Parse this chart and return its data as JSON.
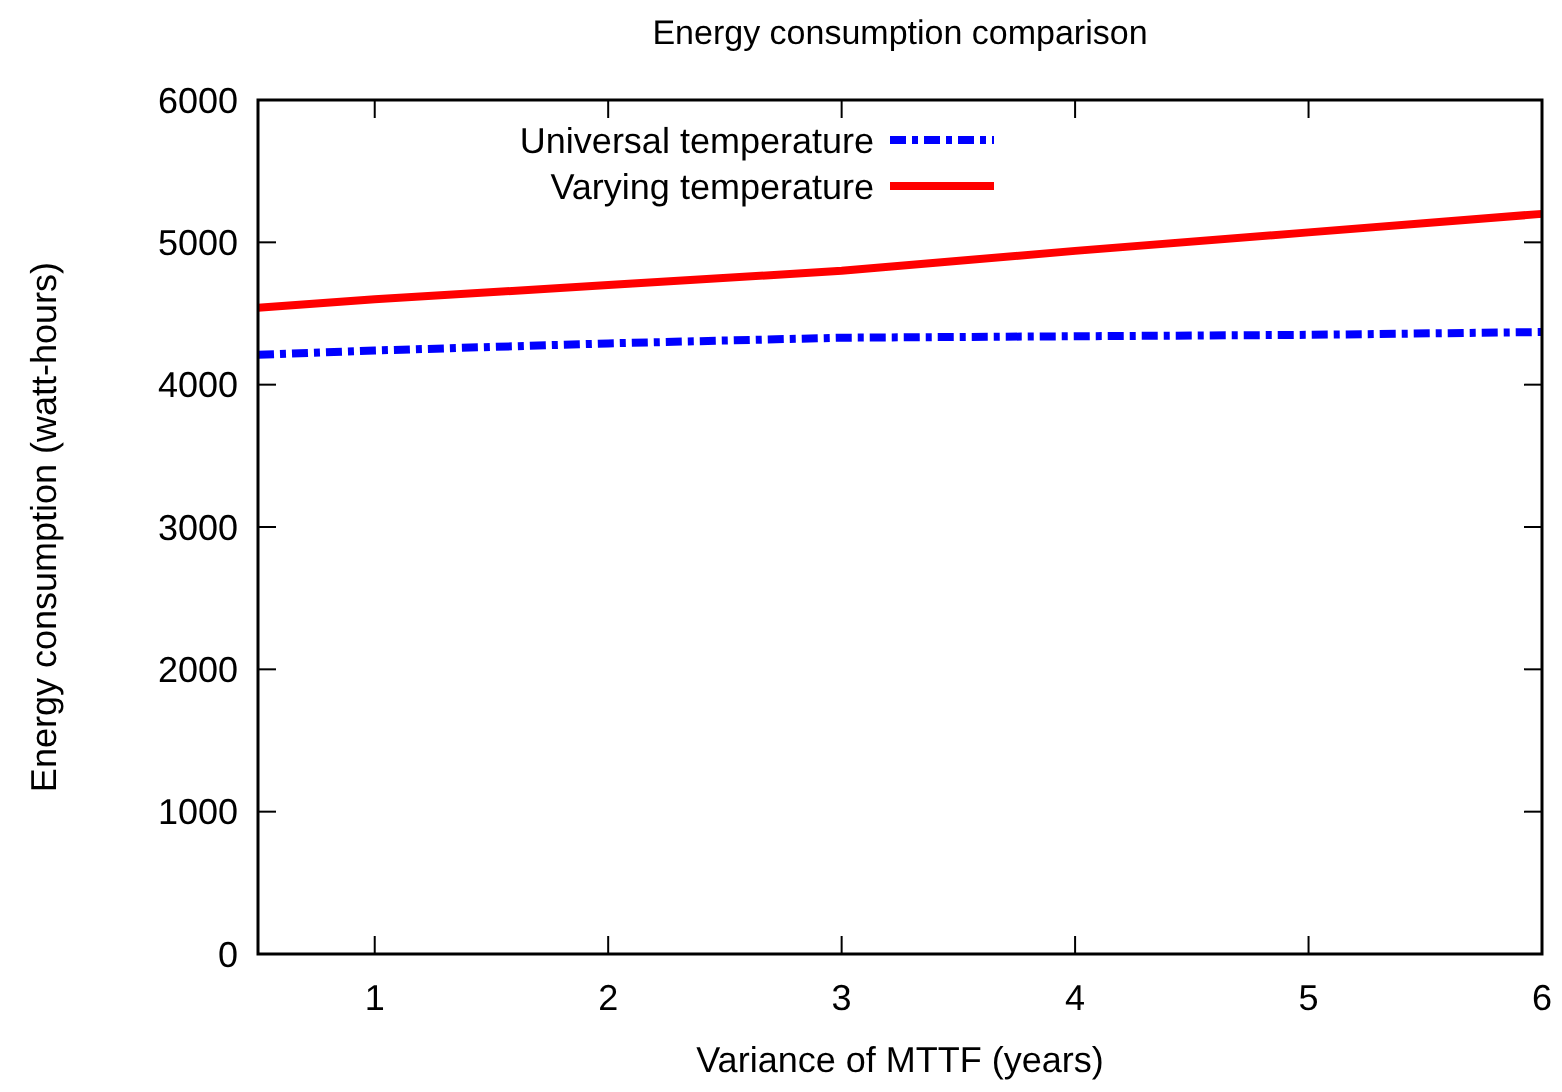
{
  "chart_data": {
    "type": "line",
    "title": "Energy consumption comparison",
    "xlabel": "Variance of MTTF (years)",
    "ylabel": "Energy consumption (watt-hours)",
    "x": [
      0.5,
      1,
      2,
      3,
      4,
      5,
      6
    ],
    "series": [
      {
        "name": "Universal temperature",
        "color": "#0000ff",
        "line_style": "dashdot",
        "values": [
          4210,
          4240,
          4290,
          4330,
          4340,
          4350,
          4370
        ]
      },
      {
        "name": "Varying temperature",
        "color": "#ff0000",
        "line_style": "solid",
        "values": [
          4540,
          4600,
          4700,
          4800,
          4940,
          5070,
          5200
        ]
      }
    ],
    "xlim": [
      0.5,
      6
    ],
    "xticks": [
      1,
      2,
      3,
      4,
      5,
      6
    ],
    "ylim": [
      0,
      6000
    ],
    "yticks": [
      0,
      1000,
      2000,
      3000,
      4000,
      5000,
      6000
    ],
    "grid": false,
    "legend": "top left"
  }
}
